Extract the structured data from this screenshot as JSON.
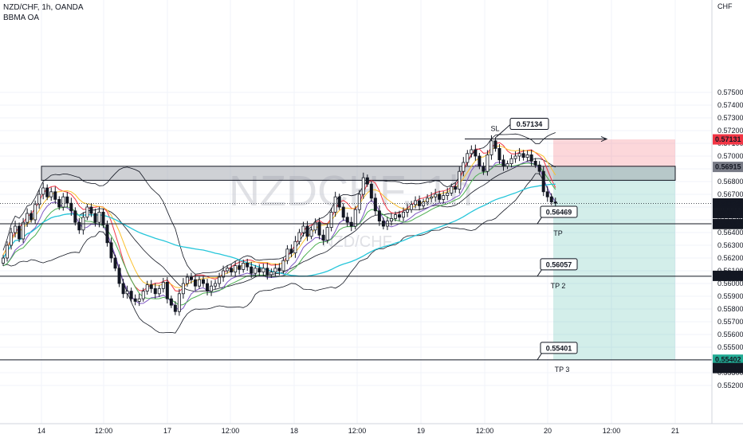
{
  "header": {
    "symbol_line": "NZD/CHF, 1h, OANDA",
    "indicator": "BBMA OA"
  },
  "watermark": {
    "big": "NZDCHF, 1h",
    "small": "NZD/CHF"
  },
  "chart_data": {
    "type": "candlestick",
    "title": "NZD/CHF, 1h, OANDA",
    "currency": "CHF",
    "ylim": [
      0.5515,
      0.576
    ],
    "y_ticks": [
      "0.57500",
      "0.57400",
      "0.57300",
      "0.57200",
      "0.57100",
      "0.57000",
      "0.56900",
      "0.56800",
      "0.56700",
      "0.56600",
      "0.56500",
      "0.56400",
      "0.56300",
      "0.56200",
      "0.56100",
      "0.56000",
      "0.55900",
      "0.55800",
      "0.55700",
      "0.55600",
      "0.55500",
      "0.55400",
      "0.55300",
      "0.55200"
    ],
    "x_ticks": [
      "14",
      "12:00",
      "17",
      "12:00",
      "18",
      "12:00",
      "19",
      "12:00",
      "20",
      "12:00",
      "21"
    ],
    "zone": {
      "top": 0.5692,
      "bottom": 0.5681
    },
    "levels": [
      {
        "name": "SL",
        "value": 0.57134,
        "label": "0.57134"
      },
      {
        "name": "TP",
        "value": 0.56469,
        "label": "0.56469"
      },
      {
        "name": "TP 2",
        "value": 0.56057,
        "label": "0.56057"
      },
      {
        "name": "TP 3",
        "value": 0.55401,
        "label": "0.55401"
      }
    ],
    "position": {
      "entry": 0.56915,
      "stop": 0.57131,
      "target": 0.55402
    },
    "price_labels": [
      {
        "text": "0.57131",
        "value": 0.57131,
        "color": "#f23645"
      },
      {
        "text": "0.56915",
        "value": 0.56915,
        "color": "#787b86"
      },
      {
        "text": "0.56628",
        "value": 0.56628,
        "color": "#131722"
      },
      {
        "text": "0.56467",
        "value": 0.56467,
        "color": "#131722"
      },
      {
        "text": "0.56060",
        "value": 0.5606,
        "color": "#131722"
      },
      {
        "text": "0.55402",
        "value": 0.55402,
        "color": "#22ab94"
      },
      {
        "text": "0.55399",
        "value": 0.55399,
        "color": "#131722"
      }
    ],
    "countdown": "45:15",
    "last_price": 0.56628,
    "closes": [
      0.562,
      0.563,
      0.564,
      0.5645,
      0.5635,
      0.5648,
      0.5655,
      0.565,
      0.5662,
      0.567,
      0.5675,
      0.5668,
      0.5672,
      0.5666,
      0.566,
      0.5668,
      0.5663,
      0.5657,
      0.5648,
      0.5642,
      0.5652,
      0.566,
      0.5655,
      0.5648,
      0.5656,
      0.5646,
      0.5632,
      0.562,
      0.5612,
      0.56,
      0.5592,
      0.5594,
      0.5588,
      0.5586,
      0.5588,
      0.5594,
      0.5599,
      0.5596,
      0.5592,
      0.5596,
      0.5601,
      0.5588,
      0.5583,
      0.5578,
      0.5592,
      0.56,
      0.5605,
      0.5603,
      0.5598,
      0.5603,
      0.56,
      0.5594,
      0.5598,
      0.56,
      0.5605,
      0.561,
      0.5612,
      0.5609,
      0.5614,
      0.5611,
      0.5616,
      0.5613,
      0.5608,
      0.5612,
      0.5609,
      0.5612,
      0.5607,
      0.5609,
      0.5612,
      0.561,
      0.5618,
      0.5627,
      0.5624,
      0.5633,
      0.564,
      0.5645,
      0.5637,
      0.5642,
      0.5648,
      0.5638,
      0.5634,
      0.5644,
      0.5656,
      0.5668,
      0.566,
      0.5652,
      0.5648,
      0.5645,
      0.5658,
      0.567,
      0.5683,
      0.5678,
      0.5667,
      0.5657,
      0.5649,
      0.5645,
      0.5649,
      0.5651,
      0.5654,
      0.5652,
      0.5656,
      0.5658,
      0.5662,
      0.5665,
      0.5661,
      0.5664,
      0.5667,
      0.5668,
      0.567,
      0.5666,
      0.5669,
      0.5671,
      0.5676,
      0.5674,
      0.5688,
      0.5695,
      0.5702,
      0.5705,
      0.57,
      0.5692,
      0.5688,
      0.5701,
      0.5712,
      0.5706,
      0.5697,
      0.5692,
      0.5694,
      0.5698,
      0.57,
      0.5702,
      0.5699,
      0.5701,
      0.5696,
      0.5693,
      0.5688,
      0.5672,
      0.5668,
      0.5664,
      0.5663
    ]
  }
}
